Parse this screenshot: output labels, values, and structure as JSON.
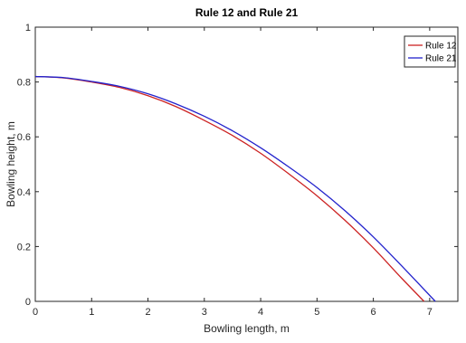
{
  "chart_data": {
    "type": "line",
    "title": "Rule 12 and Rule 21",
    "xlabel": "Bowling length, m",
    "ylabel": "Bowling height, m",
    "xlim": [
      0,
      7.5
    ],
    "ylim": [
      0,
      1
    ],
    "xticks": [
      0,
      1,
      2,
      3,
      4,
      5,
      6,
      7
    ],
    "yticks": [
      0,
      0.2,
      0.4,
      0.6,
      0.8,
      1
    ],
    "xtick_labels": [
      "0",
      "1",
      "2",
      "3",
      "4",
      "5",
      "6",
      "7"
    ],
    "ytick_labels": [
      "0",
      "0.2",
      "0.4",
      "0.6",
      "0.8",
      "1"
    ],
    "grid": false,
    "legend_position": "top-right",
    "series": [
      {
        "name": "Rule 12",
        "color": "#cc2222",
        "x": [
          0,
          0.5,
          1,
          1.5,
          2,
          2.5,
          3,
          3.5,
          4,
          4.5,
          5,
          5.5,
          6,
          6.5,
          6.9
        ],
        "y": [
          0.82,
          0.815,
          0.8,
          0.78,
          0.75,
          0.71,
          0.66,
          0.605,
          0.54,
          0.465,
          0.385,
          0.295,
          0.195,
          0.085,
          0.0
        ]
      },
      {
        "name": "Rule 21",
        "color": "#2222cc",
        "x": [
          0,
          0.5,
          1,
          1.5,
          2,
          2.5,
          3,
          3.5,
          4,
          4.5,
          5,
          5.5,
          6,
          6.5,
          7.1
        ],
        "y": [
          0.82,
          0.816,
          0.802,
          0.784,
          0.757,
          0.72,
          0.675,
          0.622,
          0.56,
          0.49,
          0.415,
          0.33,
          0.235,
          0.13,
          0.0
        ]
      }
    ]
  }
}
